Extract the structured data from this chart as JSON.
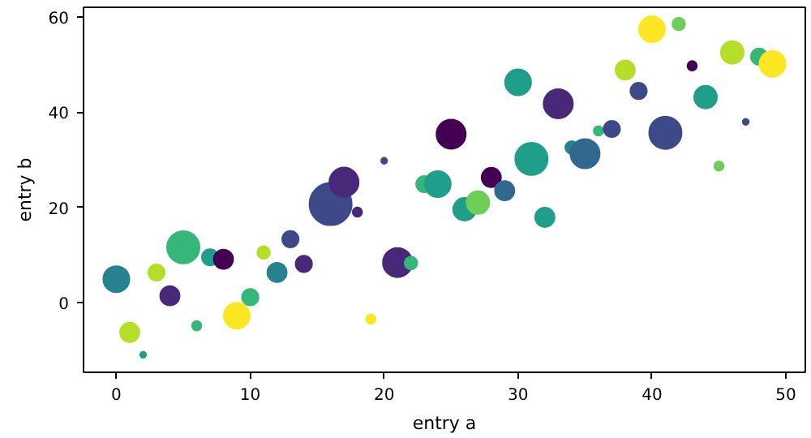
{
  "chart_data": {
    "type": "scatter",
    "xlabel": "entry a",
    "ylabel": "entry b",
    "x": [
      0,
      1,
      2,
      3,
      4,
      5,
      6,
      7,
      8,
      9,
      10,
      11,
      12,
      13,
      14,
      16,
      17,
      18,
      19,
      20,
      21,
      22,
      23,
      24,
      25,
      26,
      27,
      28,
      29,
      30,
      31,
      32,
      33,
      34,
      35,
      36,
      37,
      38,
      39,
      40,
      41,
      42,
      43,
      44,
      45,
      46,
      47,
      48,
      49
    ],
    "values": [
      4.9,
      -6.3,
      -11,
      6.3,
      1.4,
      11.6,
      -4.9,
      9.5,
      9.1,
      -2.8,
      1.1,
      10.5,
      6.3,
      13.3,
      8.1,
      20.7,
      25.3,
      19,
      -3.5,
      29.8,
      8.4,
      8.3,
      24.9,
      24.9,
      35.4,
      19.6,
      21,
      26.3,
      23.5,
      46.3,
      30.2,
      17.9,
      41.8,
      32.6,
      31.3,
      36.1,
      36.5,
      48.9,
      44.5,
      57.5,
      35.7,
      58.6,
      49.8,
      43.2,
      28.7,
      52.6,
      38,
      51.7,
      50.2
    ],
    "sizes": [
      0.38,
      0.21,
      0.02,
      0.15,
      0.21,
      0.59,
      0.05,
      0.15,
      0.21,
      0.38,
      0.15,
      0.09,
      0.21,
      0.15,
      0.15,
      1,
      0.48,
      0.05,
      0.05,
      0.02,
      0.48,
      0.09,
      0.15,
      0.38,
      0.48,
      0.29,
      0.29,
      0.21,
      0.21,
      0.38,
      0.59,
      0.21,
      0.48,
      0.09,
      0.48,
      0.05,
      0.15,
      0.21,
      0.15,
      0.38,
      0.59,
      0.09,
      0.05,
      0.29,
      0.05,
      0.29,
      0.02,
      0.15,
      0.38
    ],
    "colors": [
      "#26828e",
      "#b5de2b",
      "#1f9e89",
      "#b5de2b",
      "#482878",
      "#35b779",
      "#35b779",
      "#1f9e89",
      "#440154",
      "#fde725",
      "#35b779",
      "#b5de2b",
      "#26828e",
      "#3e4989",
      "#482878",
      "#3e4989",
      "#482878",
      "#482878",
      "#fde725",
      "#3e4989",
      "#482878",
      "#35b779",
      "#35b779",
      "#1f9e89",
      "#440154",
      "#1f9e89",
      "#6ece58",
      "#440154",
      "#31688e",
      "#1f9e89",
      "#1f9e89",
      "#1f9e89",
      "#482878",
      "#26828e",
      "#31688e",
      "#35b779",
      "#3e4989",
      "#b5de2b",
      "#3e4989",
      "#fde725",
      "#3e4989",
      "#6ece58",
      "#440154",
      "#1f9e89",
      "#6ece58",
      "#b5de2b",
      "#3e4989",
      "#35b779",
      "#fde725"
    ],
    "xlim": [
      -2.45,
      51.45
    ],
    "ylim": [
      -14.7,
      62.1
    ],
    "xticks": [
      0,
      10,
      20,
      30,
      40,
      50
    ],
    "yticks": [
      0,
      20,
      40,
      60
    ],
    "grid": false,
    "marker": "circle"
  }
}
